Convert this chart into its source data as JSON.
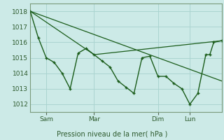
{
  "bg_color": "#cceae7",
  "grid_color": "#aad4d0",
  "line_color": "#1a5c1a",
  "ylabel": "Pression niveau de la mer( hPa )",
  "xlim": [
    0,
    96
  ],
  "ylim": [
    1011.5,
    1018.5
  ],
  "yticks": [
    1012,
    1013,
    1014,
    1015,
    1016,
    1017,
    1018
  ],
  "xtick_positions": [
    8,
    32,
    64,
    80
  ],
  "xtick_labels": [
    "Sam",
    "Mar",
    "Dim",
    "Lun"
  ],
  "series1": [
    [
      0,
      1018.0
    ],
    [
      4,
      1016.3
    ],
    [
      8,
      1015.0
    ],
    [
      12,
      1014.7
    ],
    [
      16,
      1014.0
    ],
    [
      20,
      1013.0
    ],
    [
      24,
      1015.3
    ],
    [
      28,
      1015.6
    ],
    [
      32,
      1015.2
    ],
    [
      36,
      1014.8
    ],
    [
      40,
      1014.4
    ],
    [
      44,
      1013.5
    ],
    [
      48,
      1013.1
    ],
    [
      52,
      1012.7
    ],
    [
      56,
      1015.0
    ],
    [
      60,
      1015.1
    ],
    [
      64,
      1013.8
    ],
    [
      68,
      1013.8
    ],
    [
      72,
      1013.35
    ],
    [
      76,
      1013.0
    ],
    [
      80,
      1012.0
    ],
    [
      84,
      1012.7
    ],
    [
      88,
      1015.2
    ],
    [
      90,
      1015.2
    ],
    [
      92,
      1016.0
    ],
    [
      96,
      1016.1
    ]
  ],
  "series2": [
    [
      0,
      1018.0
    ],
    [
      32,
      1015.2
    ],
    [
      96,
      1016.1
    ]
  ],
  "series3": [
    [
      0,
      1018.0
    ],
    [
      96,
      1013.5
    ]
  ]
}
